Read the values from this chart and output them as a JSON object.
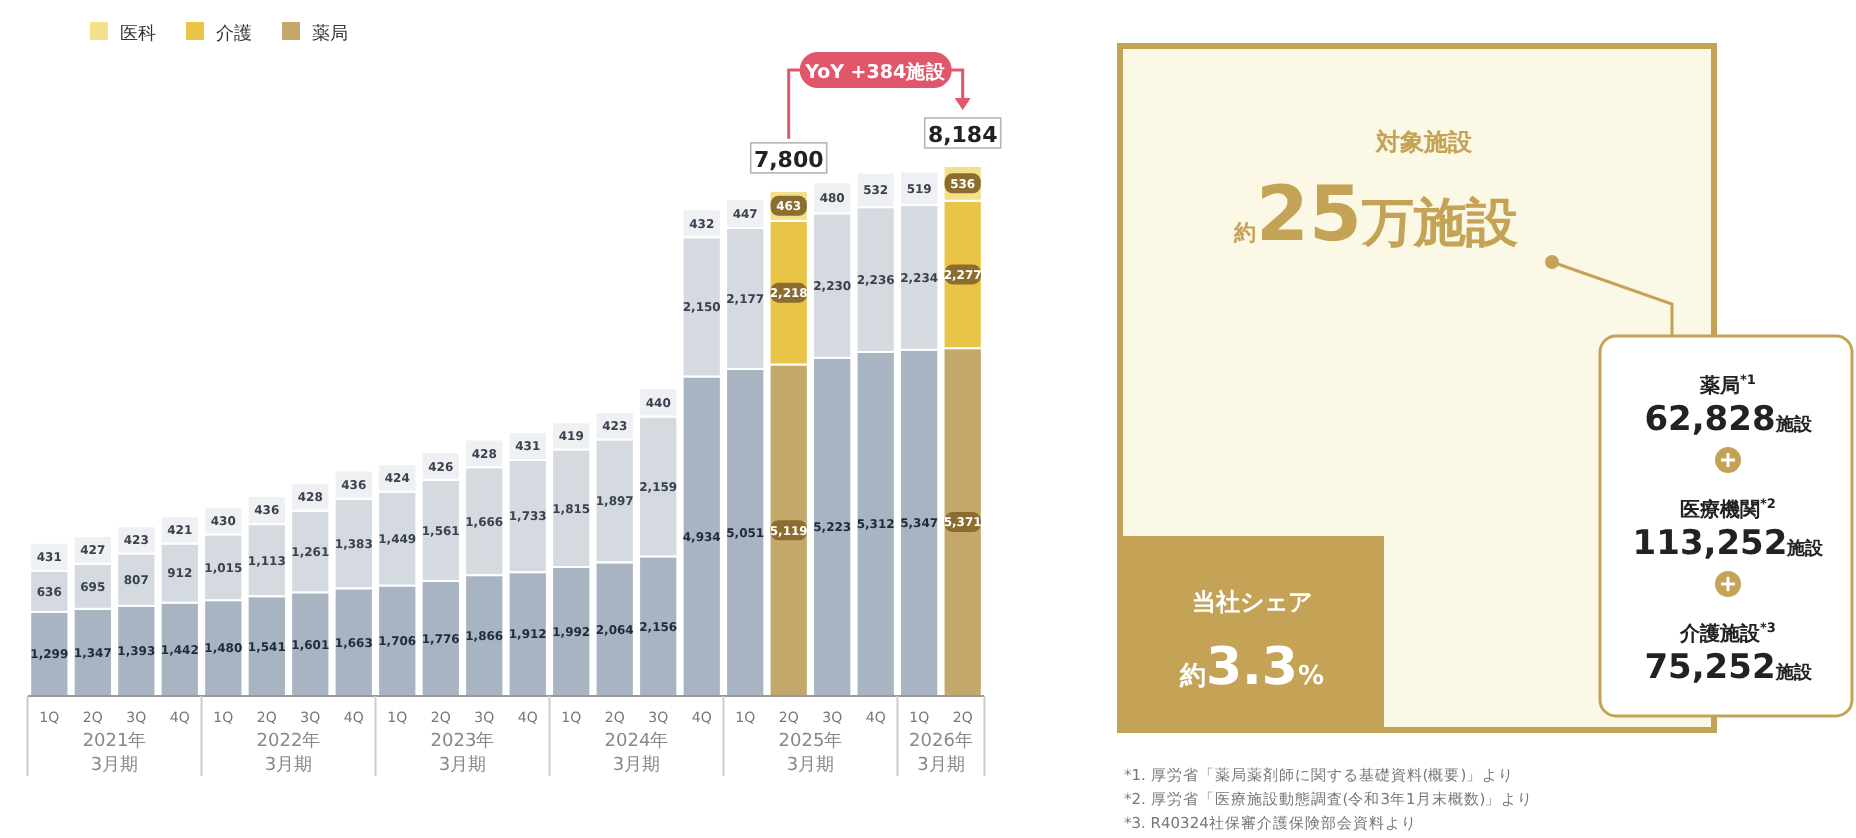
{
  "chart_data": [
    {
      "type": "bar",
      "stacked": true,
      "legend": "top left",
      "categories": [
        "1Q",
        "2Q",
        "3Q",
        "4Q",
        "1Q",
        "2Q",
        "3Q",
        "4Q",
        "1Q",
        "2Q",
        "3Q",
        "4Q",
        "1Q",
        "2Q",
        "3Q",
        "4Q",
        "1Q",
        "2Q",
        "3Q",
        "4Q",
        "1Q",
        "2Q"
      ],
      "series": [
        {
          "name": "薬局",
          "color": "#c4a76a",
          "colors": [
            "#a9b4c2",
            "#a9b4c2",
            "#a9b4c2",
            "#a9b4c2",
            "#a9b4c2",
            "#a9b4c2",
            "#a9b4c2",
            "#a9b4c2",
            "#a9b4c2",
            "#a9b4c2",
            "#a9b4c2",
            "#a9b4c2",
            "#a9b4c2",
            "#a9b4c2",
            "#a9b4c2",
            "#a9b4c2",
            "#a9b4c2",
            "#c4a76a",
            "#a9b4c2",
            "#a9b4c2",
            "#a9b4c2",
            "#c4a76a"
          ],
          "values": [
            1299,
            1347,
            1393,
            1442,
            1480,
            1541,
            1601,
            1663,
            1706,
            1776,
            1866,
            1912,
            1992,
            2064,
            2156,
            4934,
            5051,
            5119,
            5223,
            5312,
            5347,
            5371
          ],
          "value_labels": [
            "1,299",
            "1,347",
            "1,393",
            "1,442",
            "1,480",
            "1,541",
            "1,601",
            "1,663",
            "1,706",
            "1,776",
            "1,866",
            "1,912",
            "1,992",
            "2,064",
            "2,156",
            "4,934",
            "5,051",
            "5,119",
            "5,223",
            "5,312",
            "5,347",
            "5,371"
          ]
        },
        {
          "name": "介護",
          "color": "#e8c547",
          "colors": [
            "#d5dae0",
            "#d5dae0",
            "#d5dae0",
            "#d5dae0",
            "#d5dae0",
            "#d5dae0",
            "#d5dae0",
            "#d5dae0",
            "#d5dae0",
            "#d5dae0",
            "#d5dae0",
            "#d5dae0",
            "#d5dae0",
            "#d5dae0",
            "#d5dae0",
            "#d5dae0",
            "#d5dae0",
            "#e8c547",
            "#d5dae0",
            "#d5dae0",
            "#d5dae0",
            "#e8c547"
          ],
          "values": [
            636,
            695,
            807,
            912,
            1015,
            1113,
            1261,
            1383,
            1449,
            1561,
            1666,
            1733,
            1815,
            1897,
            2159,
            2150,
            2177,
            2218,
            2230,
            2236,
            2234,
            2277
          ],
          "value_labels": [
            "636",
            "695",
            "807",
            "912",
            "1,015",
            "1,113",
            "1,261",
            "1,383",
            "1,449",
            "1,561",
            "1,666",
            "1,733",
            "1,815",
            "1,897",
            "2,159",
            "2,150",
            "2,177",
            "2,218",
            "2,230",
            "2,236",
            "2,234",
            "2,277"
          ]
        },
        {
          "name": "医科",
          "color": "#f5e08a",
          "colors": [
            "#eef0f3",
            "#eef0f3",
            "#eef0f3",
            "#eef0f3",
            "#eef0f3",
            "#eef0f3",
            "#eef0f3",
            "#eef0f3",
            "#eef0f3",
            "#eef0f3",
            "#eef0f3",
            "#eef0f3",
            "#eef0f3",
            "#eef0f3",
            "#eef0f3",
            "#eef0f3",
            "#eef0f3",
            "#f5e08a",
            "#eef0f3",
            "#eef0f3",
            "#eef0f3",
            "#f5e08a"
          ],
          "values": [
            431,
            427,
            423,
            421,
            430,
            436,
            428,
            436,
            424,
            426,
            428,
            431,
            419,
            423,
            440,
            432,
            447,
            463,
            480,
            532,
            519,
            536
          ],
          "value_labels": [
            "431",
            "427",
            "423",
            "421",
            "430",
            "436",
            "428",
            "436",
            "424",
            "426",
            "428",
            "431",
            "419",
            "423",
            "440",
            "432",
            "447",
            "463",
            "480",
            "532",
            "519",
            "536"
          ]
        }
      ],
      "totals": [
        null,
        null,
        null,
        null,
        null,
        null,
        null,
        null,
        null,
        null,
        null,
        null,
        null,
        null,
        null,
        null,
        null,
        "7,800",
        null,
        null,
        null,
        "8,184"
      ],
      "annotations": [
        "YoY +384施設",
        "2021年\n3月期",
        "2022年\n3月期",
        "2023年\n3月期",
        "2024年\n3月期",
        "2025年\n3月期",
        "2026年\n3月期"
      ]
    },
    {
      "type": "other",
      "title": "対象施設",
      "subtitle": "約25万施設",
      "categories": [
        "薬局$^{*1}$",
        "医療機関$^{*2}$",
        "介護施設$^{*3}$"
      ],
      "value_labels": [
        "62,828施設",
        "113,252施設",
        "75,252施設"
      ],
      "annotations": [
        "当社シェア",
        "約3.3%",
        "*1. 厚労省「薬局薬剤師に関する基礎資料(概要)」より",
        "*2. 厚労省「医療施設動態調査(令和3年1月末概数)」より",
        "*3. R40324社保審介護保険部会資料より"
      ]
    }
  ]
}
